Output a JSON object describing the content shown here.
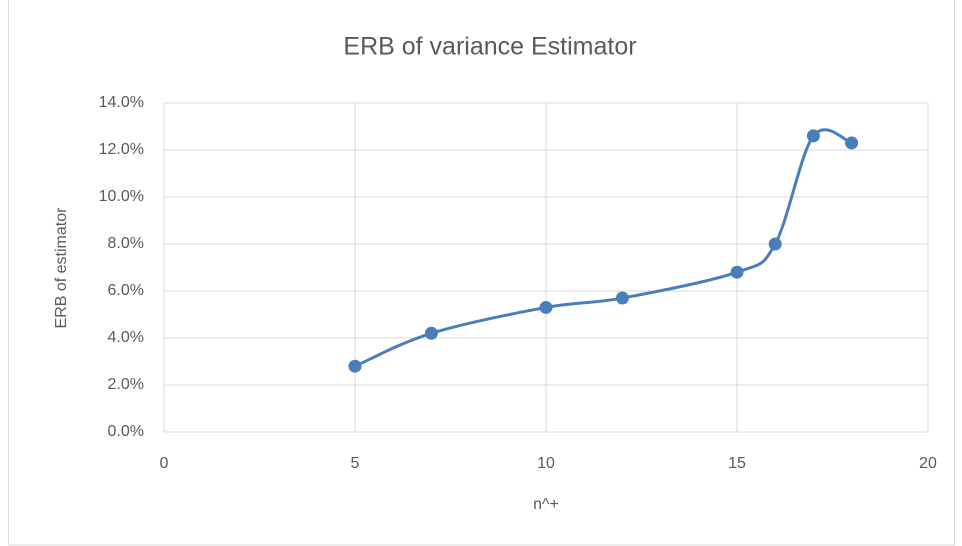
{
  "chart_data": {
    "type": "scatter-smooth",
    "title": "ERB of variance Estimator",
    "x_label": "n^+",
    "y_label": "ERB of estimator",
    "x": [
      5,
      7,
      10,
      12,
      15,
      16,
      17,
      18
    ],
    "series": [
      {
        "color": "#4a7ebb",
        "values": [
          2.8,
          4.2,
          5.3,
          5.7,
          6.8,
          8.0,
          12.6,
          12.3
        ]
      }
    ],
    "xlim": [
      0,
      20
    ],
    "xticks": [
      0,
      5,
      10,
      15,
      20
    ],
    "ylim": [
      0,
      14
    ],
    "yticks": [
      {
        "value": 0,
        "label": "0.0%"
      },
      {
        "value": 2,
        "label": "2.0%"
      },
      {
        "value": 4,
        "label": "4.0%"
      },
      {
        "value": 6,
        "label": "6.0%"
      },
      {
        "value": 8,
        "label": "8.0%"
      },
      {
        "value": 10,
        "label": "10.0%"
      },
      {
        "value": 12,
        "label": "12.0%"
      },
      {
        "value": 14,
        "label": "14.0%"
      }
    ],
    "grid": true
  }
}
